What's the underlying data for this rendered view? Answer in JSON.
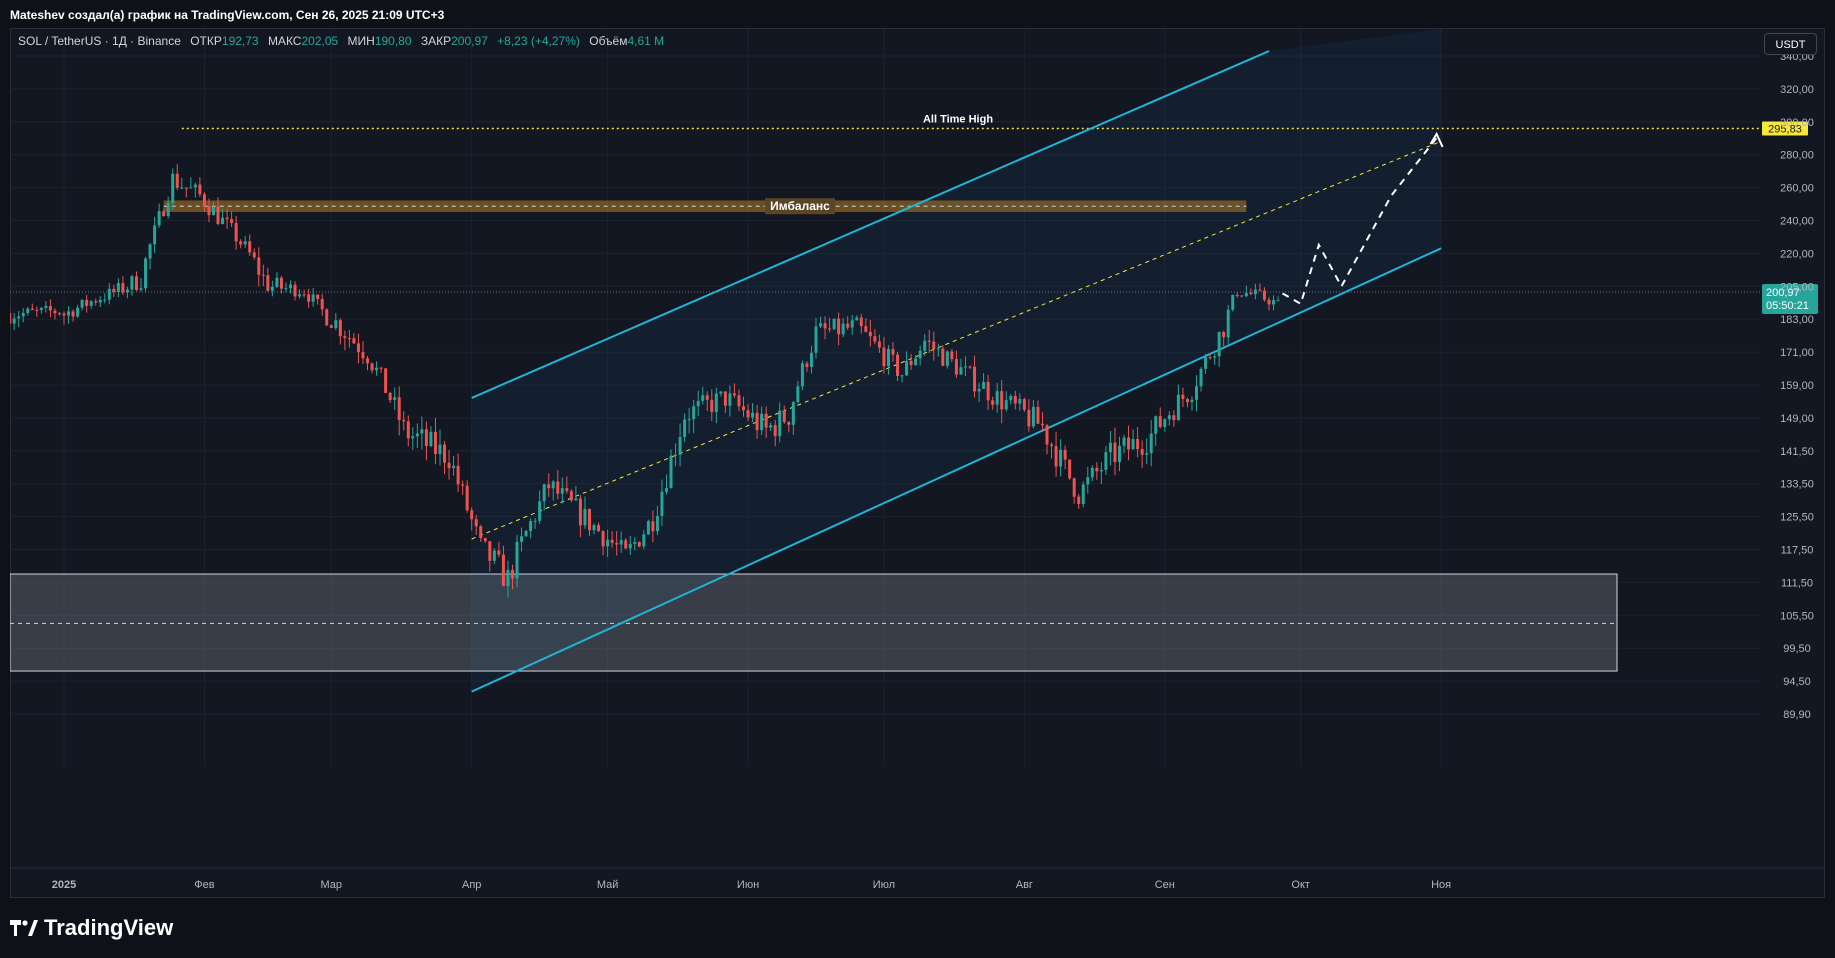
{
  "header": {
    "caption": "Mateshev создал(а) график на TradingView.com, Сен 26, 2025 21:09 UTC+3"
  },
  "legend": {
    "symbol": "SOL / TetherUS · 1Д · Binance",
    "open_label": "ОТКР",
    "open": "192,73",
    "high_label": "МАКС",
    "high": "202,05",
    "low_label": "МИН",
    "low": "190,80",
    "close_label": "ЗАКР",
    "close": "200,97",
    "change": "+8,23 (+4,27%)",
    "volume_label": "Объём",
    "volume": "4,61 M"
  },
  "currency_button": "USDT",
  "footer": {
    "brand": "TradingView"
  },
  "colors": {
    "up": "#26a69a",
    "down": "#ef5350",
    "channel": "#1fb6d6",
    "ath": "#f5e83b",
    "imbalance": "#8a6a2e"
  },
  "chart_data": {
    "type": "candlestick",
    "x_axis_labels": [
      "2025",
      "Фев",
      "Мар",
      "Апр",
      "Май",
      "Июн",
      "Июл",
      "Авг",
      "Сен",
      "Окт",
      "Ноя"
    ],
    "y_axis_labels": [
      "340,00",
      "320,00",
      "300,00",
      "280,00",
      "260,00",
      "240,00",
      "220,00",
      "205,00",
      "183,00",
      "171,00",
      "159,00",
      "149,00",
      "141,50",
      "133,50",
      "125,50",
      "117,50",
      "111,50",
      "105,50",
      "99,50",
      "94,50",
      "89,90"
    ],
    "y_scale": "log",
    "ylim": [
      89.9,
      345
    ],
    "ath_label": "All Time High",
    "ath_value": "295,83",
    "imbalance_label": "Имбаланс",
    "imbalance_range": [
      245,
      252
    ],
    "last_price": "200,97",
    "countdown": "05:50:21",
    "demand_zone": [
      96,
      113
    ],
    "demand_mid": 104,
    "channel": {
      "lower_start": {
        "date": "2025-04-01",
        "value": 93
      },
      "lower_end": {
        "date": "2025-11-01",
        "value": 223
      },
      "upper_start": {
        "date": "2025-04-01",
        "value": 155
      },
      "upper_end": {
        "date": "2025-09-24",
        "value": 343
      },
      "mid_start": {
        "date": "2025-04-01",
        "value": 120
      },
      "mid_end": {
        "date": "2025-11-01",
        "value": 288
      }
    },
    "projection": [
      {
        "date": "2025-09-27",
        "value": 200
      },
      {
        "date": "2025-10-01",
        "value": 193
      },
      {
        "date": "2025-10-05",
        "value": 225
      },
      {
        "date": "2025-10-10",
        "value": 205
      },
      {
        "date": "2025-10-21",
        "value": 255
      },
      {
        "date": "2025-10-31",
        "value": 290
      }
    ],
    "candles": []
  }
}
